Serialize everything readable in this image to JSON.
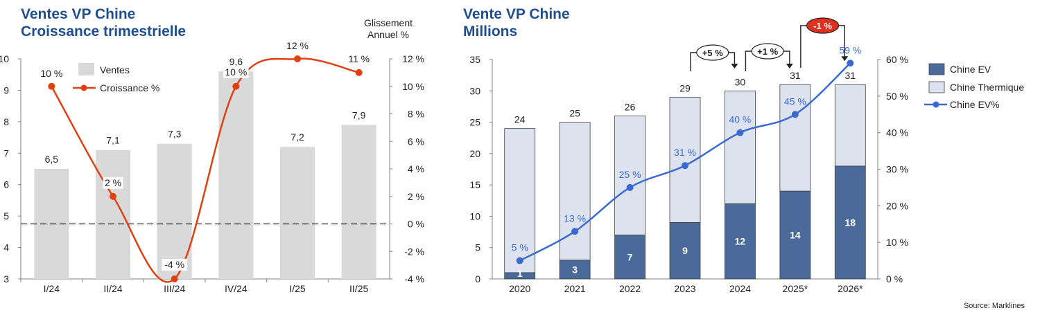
{
  "chart_data": [
    {
      "type": "bar",
      "title": "Ventes VP Chine",
      "subtitle": "Croissance trimestrielle",
      "y2label": "Glissement\nAnnuel %",
      "categories": [
        "I/24",
        "II/24",
        "III/24",
        "IV/24",
        "I/25",
        "II/25"
      ],
      "series": [
        {
          "name": "Ventes",
          "type": "bar",
          "values": [
            6.5,
            7.1,
            7.3,
            9.6,
            7.2,
            7.9
          ],
          "labels": [
            "6,5",
            "7,1",
            "7,3",
            "9,6",
            "7,2",
            "7,9"
          ]
        },
        {
          "name": "Croissance %",
          "type": "line",
          "axis": "right",
          "values": [
            10,
            2,
            -4,
            10,
            12,
            11
          ],
          "labels": [
            "10 %",
            "2 %",
            "-4 %",
            "10 %",
            "12 %",
            "11 %"
          ]
        }
      ],
      "ylim": [
        3,
        10
      ],
      "yticks": [
        "3",
        "4",
        "5",
        "6",
        "7",
        "8",
        "9",
        "10"
      ],
      "y2lim": [
        -4,
        12
      ],
      "y2ticks": [
        "-4 %",
        "-2 %",
        "0 %",
        "2 %",
        "4 %",
        "6 %",
        "8 %",
        "10 %",
        "12 %"
      ],
      "legend": "top-left",
      "colors": {
        "bar": "#d9d9d9",
        "line": "#e04010",
        "zero": "#222222"
      }
    },
    {
      "type": "bar",
      "title": "Vente VP Chine",
      "subtitle": "Millions",
      "categories": [
        "2020",
        "2021",
        "2022",
        "2023",
        "2024",
        "2025*",
        "2026*"
      ],
      "series": [
        {
          "name": "Chine EV",
          "type": "stacked-bar",
          "values": [
            1,
            3,
            7,
            9,
            12,
            14,
            18
          ],
          "labels": [
            "1",
            "3",
            "7",
            "9",
            "12",
            "14",
            "18"
          ]
        },
        {
          "name": "Chine Thermique",
          "type": "stacked-bar",
          "values": [
            23,
            22,
            19,
            20,
            18,
            17,
            13
          ]
        },
        {
          "name": "Chine EV%",
          "type": "line",
          "axis": "right",
          "values": [
            5,
            13,
            25,
            31,
            40,
            45,
            59
          ],
          "labels": [
            "5 %",
            "13 %",
            "25 %",
            "31 %",
            "40 %",
            "45 %",
            "59 %"
          ]
        }
      ],
      "totals": [
        "24",
        "25",
        "26",
        "29",
        "30",
        "31",
        "31"
      ],
      "ylim": [
        0,
        35
      ],
      "yticks": [
        "0",
        "5",
        "10",
        "15",
        "20",
        "25",
        "30",
        "35"
      ],
      "y2lim": [
        0,
        60
      ],
      "y2ticks": [
        "0 %",
        "10 %",
        "20 %",
        "30 %",
        "40 %",
        "50 %",
        "60 %"
      ],
      "annotations": [
        {
          "text": "+5 %",
          "from": "2023",
          "to": "2024"
        },
        {
          "text": "+1 %",
          "from": "2024",
          "to": "2025*"
        },
        {
          "text": "-1 %",
          "from": "2025*",
          "to": "2026*",
          "highlight": true
        }
      ],
      "legend": "right",
      "colors": {
        "ev": "#4a6a9a",
        "thermique": "#dce3ef",
        "line": "#3a6ad0",
        "label": "#3a6ad0",
        "highlight": "#e03020"
      }
    }
  ],
  "source": "Source: Marklines"
}
